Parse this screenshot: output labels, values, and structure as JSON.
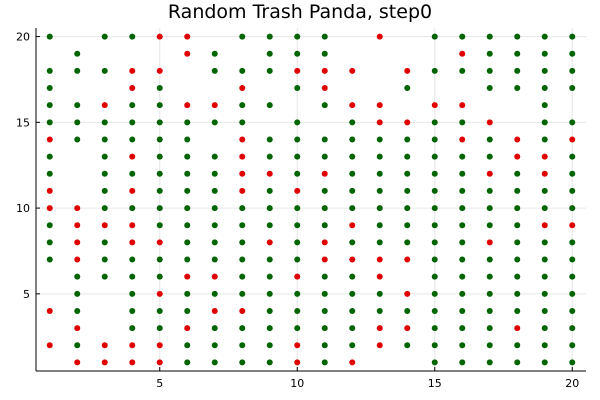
{
  "chart_data": {
    "type": "scatter",
    "title": "Random Trash Panda, step0",
    "xlabel": "",
    "ylabel": "",
    "xlim": [
      0.5,
      20.5
    ],
    "ylim": [
      0.5,
      20.5
    ],
    "xticks": [
      5,
      10,
      15,
      20
    ],
    "yticks": [
      5,
      10,
      15,
      20
    ],
    "grid": true,
    "legend": "none",
    "colors": {
      "green": "#006400",
      "red": "#e00000",
      "axis": "#000000",
      "grid": "#e6e6e6"
    },
    "rows": [
      {
        "y": 20,
        "cells": "G.GGRR.GGGG.R.GGGGGG"
      },
      {
        "y": 19,
        "cells": ".G...RG.GGG....RGGGG"
      },
      {
        "y": 18,
        "cells": "GGGRR.GGGRRR.RGGGGGG"
      },
      {
        "y": 17,
        "cells": "G..RG..R.GR..G..GGGG"
      },
      {
        "y": 16,
        "cells": "GGRGGRRGG.GRR.RR..G."
      },
      {
        "y": 15,
        "cells": "GGGGGGGG.G.GRRGGR.GG"
      },
      {
        "y": 14,
        "cells": "RGGGGG.RGGGGGGGRGRGR"
      },
      {
        "y": 13,
        "cells": "G.GRGGGRGGGGGGGGGRRG"
      },
      {
        "y": 12,
        "cells": "G.GGGGGRRGRGGGGGRGRG"
      },
      {
        "y": 11,
        "cells": "R.GRGGGRGRGGGGGGGGGG"
      },
      {
        "y": 10,
        "cells": "RRGGGGGGGGGGGGGGGGGG"
      },
      {
        "y": 9,
        "cells": "GRRRGGGGGGGRGGGGGGRR"
      },
      {
        "y": 8,
        "cells": "GRGRRGGGRGRGGGGGRGGG"
      },
      {
        "y": 7,
        "cells": "GRGGGGGGGGRRRRGGGGGG"
      },
      {
        "y": 6,
        "cells": ".GGGGRRGGRGGR.GGGGGG"
      },
      {
        "y": 5,
        "cells": ".G.GRGGGGGGGGRGGGGGG"
      },
      {
        "y": 4,
        "cells": "RG.GGGRRGGGGGGGGGGGG"
      },
      {
        "y": 3,
        "cells": ".R.GGRGGGGGGRRGGGRGG"
      },
      {
        "y": 2,
        "cells": "RGRRRGGGGRGGRGGGGGGG"
      },
      {
        "y": 1,
        "cells": ".RRRRGGGGRGR..GGGGGG"
      }
    ]
  }
}
